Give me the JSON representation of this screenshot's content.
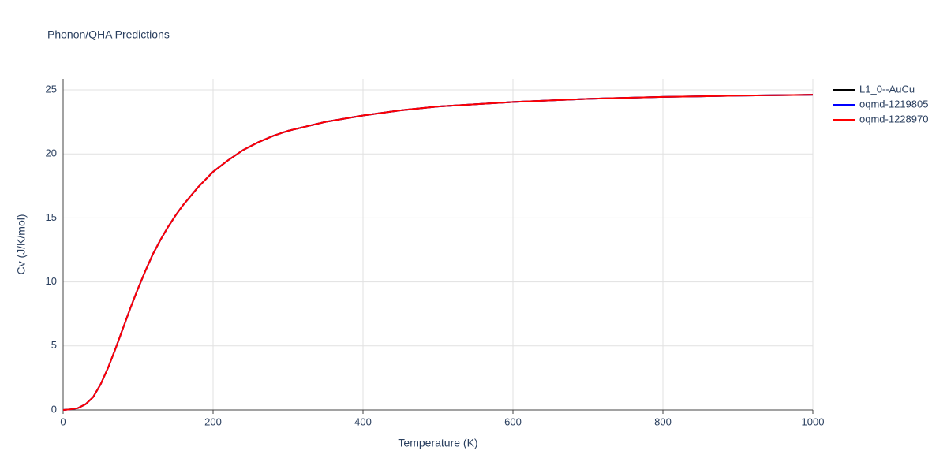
{
  "chart_data": {
    "type": "line",
    "title": "Phonon/QHA Predictions",
    "x_label": "Temperature (K)",
    "y_label": "Cv (J/K/mol)",
    "x": [
      0,
      10,
      20,
      30,
      40,
      50,
      60,
      70,
      80,
      90,
      100,
      110,
      120,
      130,
      140,
      150,
      160,
      170,
      180,
      190,
      200,
      220,
      240,
      260,
      280,
      300,
      350,
      400,
      450,
      500,
      600,
      700,
      800,
      900,
      1000
    ],
    "series": [
      {
        "name": "L1_0--AuCu",
        "color": "#000000",
        "values": [
          0,
          0.05,
          0.15,
          0.45,
          1.0,
          2.0,
          3.3,
          4.8,
          6.4,
          8.0,
          9.5,
          10.9,
          12.2,
          13.3,
          14.3,
          15.2,
          16.0,
          16.7,
          17.4,
          18.0,
          18.6,
          19.5,
          20.3,
          20.9,
          21.4,
          21.8,
          22.5,
          23.0,
          23.4,
          23.7,
          24.05,
          24.3,
          24.45,
          24.55,
          24.62
        ]
      },
      {
        "name": "oqmd-1219805",
        "color": "#0000ff",
        "values": [
          0,
          0.05,
          0.15,
          0.45,
          1.0,
          2.0,
          3.3,
          4.8,
          6.4,
          8.0,
          9.5,
          10.9,
          12.2,
          13.3,
          14.3,
          15.2,
          16.0,
          16.7,
          17.4,
          18.0,
          18.6,
          19.5,
          20.3,
          20.9,
          21.4,
          21.8,
          22.5,
          23.0,
          23.4,
          23.7,
          24.05,
          24.3,
          24.45,
          24.55,
          24.62
        ]
      },
      {
        "name": "oqmd-1228970",
        "color": "#ff0000",
        "values": [
          0,
          0.05,
          0.15,
          0.45,
          1.0,
          2.0,
          3.3,
          4.8,
          6.4,
          8.0,
          9.5,
          10.9,
          12.2,
          13.3,
          14.3,
          15.2,
          16.0,
          16.7,
          17.4,
          18.0,
          18.6,
          19.5,
          20.3,
          20.9,
          21.4,
          21.8,
          22.5,
          23.0,
          23.4,
          23.7,
          24.05,
          24.3,
          24.45,
          24.55,
          24.62
        ]
      }
    ],
    "xlim": [
      0,
      1000
    ],
    "xticks": [
      0,
      200,
      400,
      600,
      800,
      1000
    ],
    "ylim": [
      0,
      25
    ],
    "yticks": [
      0,
      5,
      10,
      15,
      20,
      25
    ],
    "grid": true,
    "legend": "right"
  }
}
